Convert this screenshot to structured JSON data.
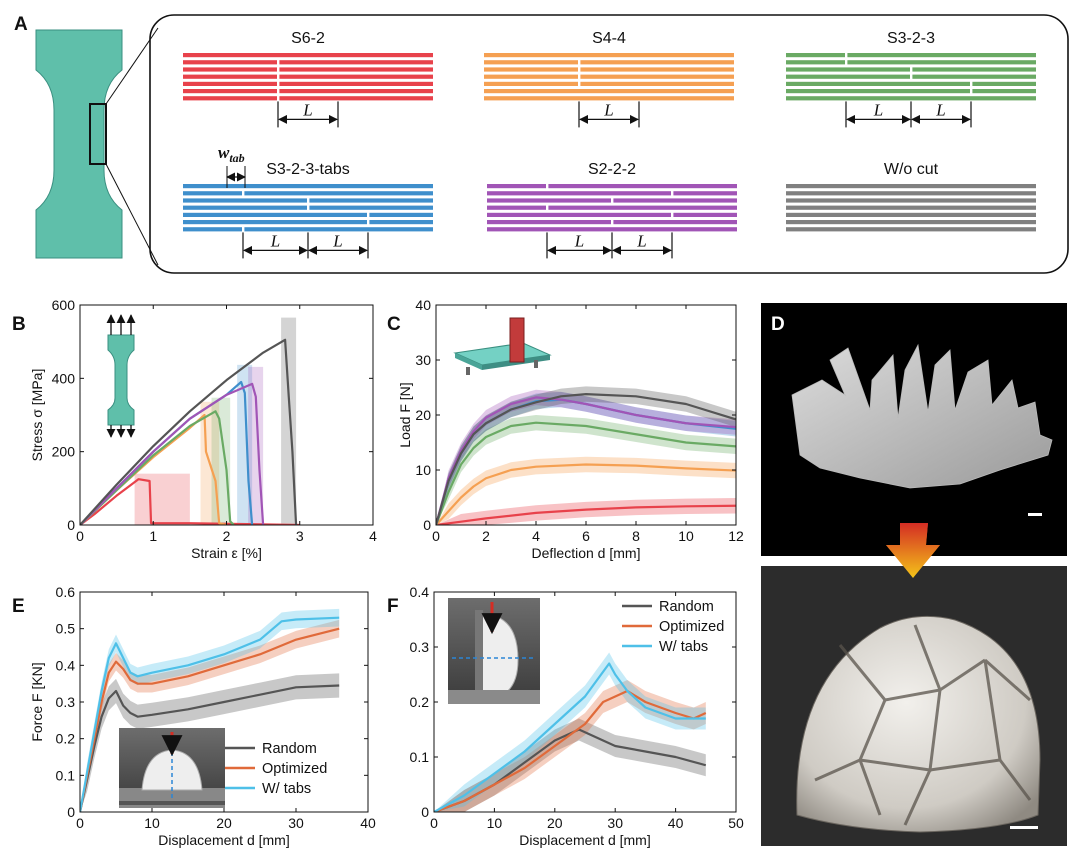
{
  "panel_labels": {
    "A": "A",
    "B": "B",
    "C": "C",
    "D": "D",
    "E": "E",
    "F": "F"
  },
  "panel_a": {
    "patterns": [
      {
        "name": "S6-2",
        "color": "#e8424b",
        "L_labels": [
          "L"
        ]
      },
      {
        "name": "S4-4",
        "color": "#f5a052",
        "L_labels": [
          "L"
        ]
      },
      {
        "name": "S3-2-3",
        "color": "#6aaa64",
        "L_labels": [
          "L",
          "L"
        ]
      },
      {
        "name": "S3-2-3-tabs",
        "color": "#3f8fcc",
        "L_labels": [
          "L",
          "L"
        ]
      },
      {
        "name": "S2-2-2",
        "color": "#a155b6",
        "L_labels": [
          "L",
          "L"
        ]
      },
      {
        "name": "W/o cut",
        "color": "#808080",
        "L_labels": []
      }
    ],
    "w_tab_label": "w",
    "w_tab_sub": "tab"
  },
  "chart_data": [
    {
      "panel": "B",
      "type": "line",
      "xlabel": "Strain ε [%]",
      "ylabel": "Stress σ [MPa]",
      "xlim": [
        0,
        4
      ],
      "ylim": [
        0,
        600
      ],
      "xticks": [
        "0",
        "1",
        "2",
        "3",
        "4"
      ],
      "yticks": [
        "0",
        "200",
        "400",
        "600"
      ],
      "series": [
        {
          "name": "S6-2",
          "color": "#e8424b",
          "x": [
            0,
            0.2,
            0.5,
            0.8,
            0.95,
            0.97,
            1.5,
            3.0
          ],
          "y": [
            0,
            30,
            80,
            125,
            120,
            5,
            5,
            0
          ]
        },
        {
          "name": "S4-4",
          "color": "#f5a052",
          "x": [
            0,
            0.5,
            1.0,
            1.5,
            1.7,
            1.72,
            1.85,
            1.9,
            2.0
          ],
          "y": [
            0,
            95,
            185,
            265,
            300,
            200,
            120,
            5,
            0
          ]
        },
        {
          "name": "S3-2-3",
          "color": "#6aaa64",
          "x": [
            0,
            0.5,
            1.0,
            1.5,
            1.85,
            1.9,
            2.0,
            2.05,
            2.1
          ],
          "y": [
            0,
            95,
            190,
            270,
            310,
            290,
            150,
            10,
            0
          ]
        },
        {
          "name": "S3-2-3-tabs",
          "color": "#3f8fcc",
          "x": [
            0,
            0.5,
            1.0,
            1.5,
            2.0,
            2.2,
            2.25,
            2.3,
            2.35
          ],
          "y": [
            0,
            100,
            200,
            290,
            355,
            390,
            360,
            120,
            0
          ]
        },
        {
          "name": "S2-2-2",
          "color": "#a155b6",
          "x": [
            0,
            0.5,
            1.0,
            1.5,
            2.0,
            2.35,
            2.4,
            2.45,
            2.5
          ],
          "y": [
            0,
            100,
            200,
            290,
            355,
            385,
            350,
            150,
            0
          ]
        },
        {
          "name": "W/o cut",
          "color": "#555555",
          "x": [
            0,
            0.5,
            1.0,
            1.5,
            2.0,
            2.5,
            2.8,
            2.85,
            2.9,
            2.95
          ],
          "y": [
            0,
            110,
            215,
            310,
            395,
            470,
            505,
            350,
            200,
            0
          ]
        }
      ]
    },
    {
      "panel": "C",
      "type": "line",
      "xlabel": "Deflection d [mm]",
      "ylabel": "Load F [N]",
      "xlim": [
        0,
        12
      ],
      "ylim": [
        0,
        40
      ],
      "xticks": [
        "0",
        "2",
        "4",
        "6",
        "8",
        "10",
        "12"
      ],
      "yticks": [
        "0",
        "10",
        "20",
        "30",
        "40"
      ],
      "series": [
        {
          "name": "S6-2",
          "color": "#e8424b",
          "x": [
            0,
            1,
            2,
            4,
            6,
            8,
            10,
            12
          ],
          "y": [
            0,
            0.6,
            1.2,
            2.2,
            2.8,
            3.2,
            3.4,
            3.5
          ]
        },
        {
          "name": "S4-4",
          "color": "#f5a052",
          "x": [
            0,
            0.5,
            1,
            1.5,
            2,
            3,
            4,
            6,
            8,
            10,
            12
          ],
          "y": [
            0,
            2.5,
            5,
            7,
            8.5,
            10,
            10.6,
            11,
            10.8,
            10.3,
            9.9
          ]
        },
        {
          "name": "S3-2-3",
          "color": "#6aaa64",
          "x": [
            0,
            0.5,
            1,
            1.5,
            2,
            3,
            4,
            6,
            8,
            10,
            12
          ],
          "y": [
            0,
            6,
            11,
            14,
            16,
            18,
            18.6,
            18,
            16.5,
            15,
            14.3
          ]
        },
        {
          "name": "S3-2-3-tabs",
          "color": "#3f8fcc",
          "x": [
            0,
            0.5,
            1,
            1.5,
            2,
            3,
            4,
            5,
            6,
            8,
            10,
            12
          ],
          "y": [
            0,
            8,
            13,
            16.5,
            18.5,
            21,
            22.5,
            22.8,
            22,
            20,
            18.5,
            17.5
          ]
        },
        {
          "name": "S2-2-2",
          "color": "#a155b6",
          "x": [
            0,
            0.5,
            1,
            1.5,
            2,
            3,
            4,
            5,
            6,
            8,
            10,
            12
          ],
          "y": [
            0,
            8.5,
            13.5,
            17,
            19.5,
            22,
            23.2,
            22.8,
            22,
            20,
            18.5,
            17.8
          ]
        },
        {
          "name": "W/o cut",
          "color": "#555555",
          "x": [
            0,
            0.5,
            1,
            1.5,
            2,
            3,
            4,
            5,
            6,
            8,
            10,
            12
          ],
          "y": [
            0,
            8,
            13,
            16.5,
            18.5,
            21,
            22.3,
            23.4,
            23.8,
            23.4,
            22,
            19.2
          ]
        }
      ]
    },
    {
      "panel": "E",
      "type": "line",
      "xlabel": "Displacement d [mm]",
      "ylabel": "Force F [KN]",
      "xlim": [
        0,
        40
      ],
      "ylim": [
        0,
        0.6
      ],
      "xticks": [
        "0",
        "10",
        "20",
        "30",
        "40"
      ],
      "yticks": [
        "0",
        "0.1",
        "0.2",
        "0.3",
        "0.4",
        "0.5",
        "0.6"
      ],
      "legend": {
        "position": "lower-right",
        "entries": [
          "Random",
          "Optimized",
          "W/ tabs"
        ]
      },
      "series": [
        {
          "name": "Random",
          "color": "#555555",
          "x": [
            0,
            1,
            2,
            3,
            4,
            5,
            6,
            7,
            8,
            10,
            15,
            20,
            25,
            30,
            36
          ],
          "y": [
            0,
            0.09,
            0.18,
            0.26,
            0.31,
            0.33,
            0.29,
            0.27,
            0.26,
            0.265,
            0.28,
            0.3,
            0.32,
            0.34,
            0.345
          ]
        },
        {
          "name": "Optimized",
          "color": "#e06a3a",
          "x": [
            0,
            1,
            2,
            3,
            4,
            5,
            6,
            7,
            8,
            10,
            15,
            20,
            25,
            30,
            36
          ],
          "y": [
            0,
            0.1,
            0.2,
            0.3,
            0.38,
            0.41,
            0.39,
            0.36,
            0.35,
            0.35,
            0.37,
            0.4,
            0.43,
            0.47,
            0.5
          ]
        },
        {
          "name": "W/ tabs",
          "color": "#4ec0e8",
          "x": [
            0,
            1,
            2,
            3,
            4,
            5,
            6,
            7,
            8,
            10,
            15,
            20,
            25,
            28,
            30,
            36
          ],
          "y": [
            0,
            0.11,
            0.22,
            0.33,
            0.42,
            0.46,
            0.42,
            0.38,
            0.37,
            0.38,
            0.4,
            0.43,
            0.47,
            0.52,
            0.525,
            0.53
          ]
        }
      ]
    },
    {
      "panel": "F",
      "type": "line",
      "xlabel": "Displacement d [mm]",
      "ylabel": "",
      "xlim": [
        0,
        50
      ],
      "ylim": [
        0,
        0.4
      ],
      "xticks": [
        "0",
        "10",
        "20",
        "30",
        "40",
        "50"
      ],
      "yticks": [
        "0",
        "0.1",
        "0.2",
        "0.3",
        "0.4"
      ],
      "legend": {
        "position": "top-right",
        "entries": [
          "Random",
          "Optimized",
          "W/ tabs"
        ]
      },
      "series": [
        {
          "name": "Random",
          "color": "#555555",
          "x": [
            0,
            5,
            10,
            15,
            20,
            24,
            26,
            28,
            30,
            35,
            40,
            45
          ],
          "y": [
            0,
            0.02,
            0.05,
            0.09,
            0.13,
            0.15,
            0.14,
            0.13,
            0.12,
            0.11,
            0.1,
            0.085
          ]
        },
        {
          "name": "Optimized",
          "color": "#e06a3a",
          "x": [
            0,
            5,
            10,
            15,
            20,
            25,
            28,
            30,
            32,
            35,
            40,
            43,
            45
          ],
          "y": [
            0,
            0.02,
            0.05,
            0.08,
            0.12,
            0.16,
            0.2,
            0.21,
            0.22,
            0.2,
            0.18,
            0.17,
            0.18
          ]
        },
        {
          "name": "W/ tabs",
          "color": "#4ec0e8",
          "x": [
            0,
            5,
            10,
            15,
            20,
            25,
            27,
            29,
            30,
            32,
            35,
            40,
            45
          ],
          "y": [
            0,
            0.03,
            0.07,
            0.11,
            0.16,
            0.21,
            0.24,
            0.27,
            0.25,
            0.22,
            0.19,
            0.17,
            0.17
          ]
        }
      ]
    }
  ]
}
